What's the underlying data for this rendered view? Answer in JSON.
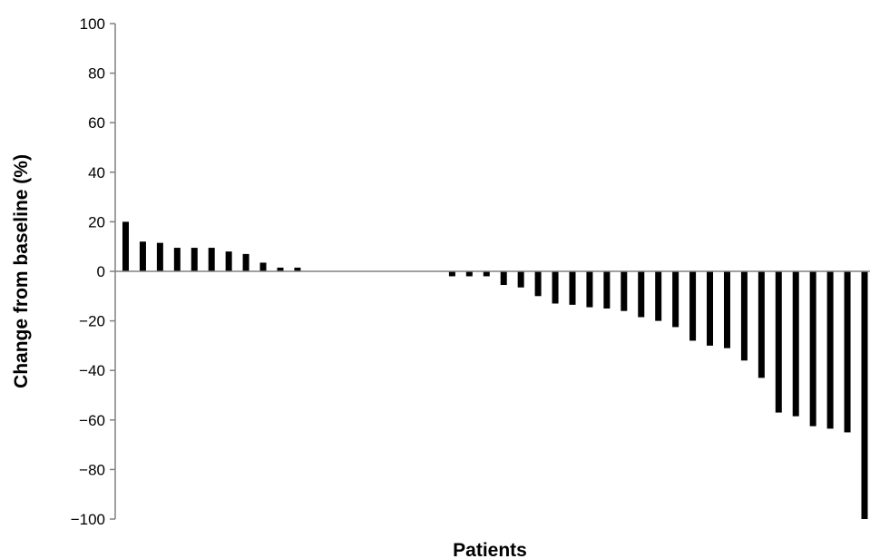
{
  "chart_data": {
    "type": "bar",
    "title": "",
    "xlabel": "Patients",
    "ylabel": "Change from baseline (%)",
    "ylim": [
      -100,
      100
    ],
    "yticks": [
      100,
      80,
      60,
      40,
      20,
      0,
      -20,
      -40,
      -60,
      -80,
      -100
    ],
    "ytick_labels": [
      "100",
      "80",
      "60",
      "40",
      "20",
      "0",
      "−20",
      "−40",
      "−60",
      "−80",
      "−100"
    ],
    "grid": false,
    "legend": "none",
    "bar_color": "#000000",
    "axis_color": "#808080",
    "values": [
      20,
      12,
      11.5,
      9.5,
      9.5,
      9.5,
      8,
      7,
      3.5,
      1.5,
      1.5,
      0,
      0,
      0,
      0,
      0,
      0,
      0,
      0,
      -2,
      -2,
      -2,
      -5.5,
      -6.5,
      -10,
      -13,
      -13.5,
      -14.5,
      -15,
      -16,
      -18.5,
      -20,
      -22.5,
      -28,
      -30,
      -31,
      -36,
      -43,
      -57,
      -58.5,
      -62.5,
      -63.5,
      -65,
      -100
    ]
  }
}
